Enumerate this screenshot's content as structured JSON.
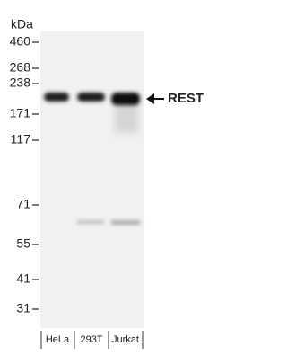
{
  "unit_label": "kDa",
  "markers": [
    "460",
    "268",
    "238",
    "171",
    "117",
    "71",
    "55",
    "41",
    "31"
  ],
  "lanes": [
    "HeLa",
    "293T",
    "Jurkat"
  ],
  "annotation": "REST"
}
